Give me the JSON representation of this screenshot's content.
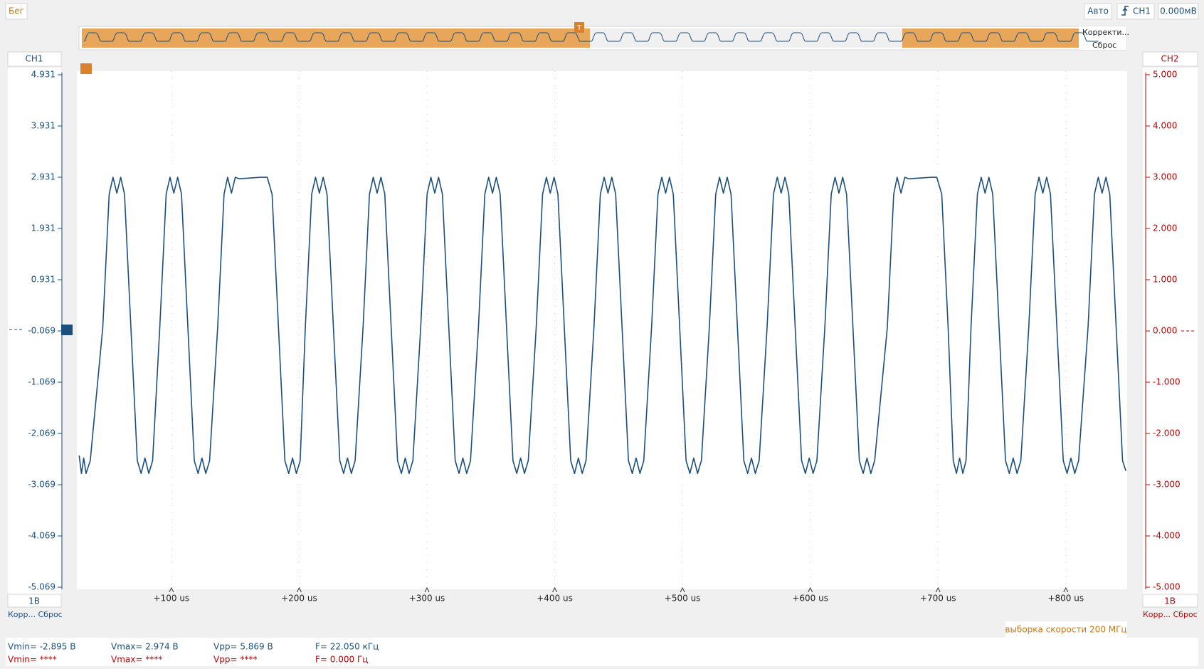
{
  "toolbar": {
    "run": "Бег",
    "mode": "Авто",
    "trigger_source": "CH1",
    "trigger_level": "0.000мВ"
  },
  "minimap": {
    "menu": "Корректи...",
    "reset": "Сброс"
  },
  "chart_data": {
    "type": "line",
    "xlim": [
      26,
      848
    ],
    "xticks": [
      {
        "value": 100,
        "label": "+100 us"
      },
      {
        "value": 200,
        "label": "+200 us"
      },
      {
        "value": 300,
        "label": "+300 us"
      },
      {
        "value": 400,
        "label": "+400 us"
      },
      {
        "value": 500,
        "label": "+500 us"
      },
      {
        "value": 600,
        "label": "+600 us"
      },
      {
        "value": 700,
        "label": "+700 us"
      },
      {
        "value": 800,
        "label": "+800 us"
      }
    ],
    "ylim": [
      -5.069,
      4.931
    ],
    "yticks": [
      4.931,
      3.931,
      2.931,
      1.931,
      0.931,
      -0.069,
      -1.069,
      -2.069,
      -3.069,
      -4.069,
      -5.069
    ],
    "y2lim": [
      -5,
      5
    ],
    "y2ticks": [
      {
        "value": 5,
        "label": "5.000"
      },
      {
        "value": 4,
        "label": "4.000"
      },
      {
        "value": 3,
        "label": "3.000"
      },
      {
        "value": 2,
        "label": "2.000"
      },
      {
        "value": 1,
        "label": "1.000"
      },
      {
        "value": 0,
        "label": "0.000"
      },
      {
        "value": -1,
        "label": "-1.000"
      },
      {
        "value": -2,
        "label": "-2.000"
      },
      {
        "value": -3,
        "label": "-3.000"
      },
      {
        "value": -4,
        "label": "-4.000"
      },
      {
        "value": -5,
        "label": "-5.000"
      }
    ],
    "y2_label": "CH2",
    "y2_color": "#c00000",
    "y_scale_label": "1В",
    "y2_scale_label": "1В",
    "grid": true,
    "x": [
      27.8,
      29.6,
      31.4,
      33.2,
      36.5,
      46.3,
      51.3,
      54.3,
      57.3,
      60.3,
      63.3,
      68.3,
      73.3,
      76.3,
      79.3,
      82.3,
      85.3,
      90.9,
      95.9,
      98.9,
      101.9,
      104.9,
      107.9,
      112.9,
      117.9,
      120.9,
      123.9,
      126.9,
      129.9,
      136.2,
      141.2,
      144,
      147,
      150,
      153,
      170,
      175,
      178.8,
      183.8,
      188.8,
      191.8,
      194.8,
      197.8,
      200.8,
      204.8,
      209.8,
      212.8,
      215.8,
      218.8,
      221.8,
      226.8,
      231.8,
      234.8,
      237.8,
      240.8,
      243.8,
      250,
      255,
      258,
      261,
      264,
      267,
      272,
      277,
      280,
      283,
      286,
      289,
      295.1,
      300.1,
      303.1,
      306.1,
      309.1,
      312.1,
      317.1,
      322.1,
      325.1,
      328.1,
      331.1,
      334.1,
      340.3,
      345.3,
      348.3,
      351.3,
      354.3,
      357.3,
      362.3,
      367.3,
      370.3,
      373.3,
      376.3,
      379.3,
      385.5,
      390.5,
      393.5,
      396.5,
      399.5,
      402.5,
      407.5,
      412.5,
      415.5,
      418.5,
      421.5,
      424.5,
      430.7,
      435.7,
      438.7,
      441.7,
      444.7,
      447.7,
      452.7,
      457.7,
      460.7,
      463.7,
      466.7,
      469.7,
      475.8,
      480.8,
      483.8,
      486.8,
      489.8,
      492.8,
      497.8,
      502.8,
      505.8,
      508.8,
      511.8,
      514.8,
      521,
      526,
      529,
      532,
      535,
      538,
      543,
      548,
      551,
      554,
      557,
      560,
      566.2,
      571.2,
      574.2,
      577.2,
      580.2,
      583.2,
      588.2,
      593.2,
      596.2,
      599.2,
      602.2,
      605.2,
      611.4,
      616.4,
      619.4,
      622.4,
      625.4,
      628.4,
      633.4,
      638.4,
      641.4,
      644.4,
      647.4,
      650.4,
      660.3,
      665.3,
      668,
      671,
      674,
      677,
      695,
      699,
      702.9,
      707.9,
      711.9,
      714.4,
      716.9,
      719.4,
      721.9,
      725.8,
      730.8,
      733.8,
      736.8,
      739.8,
      742.8,
      747.8,
      752.8,
      755.8,
      758.8,
      761.8,
      764.8,
      771,
      776,
      779,
      782,
      785,
      788,
      793,
      798,
      801,
      804,
      807,
      810,
      817.4,
      822.4,
      825.4,
      828.4,
      831.4,
      834.4,
      839.4,
      844.4,
      847
    ],
    "series": [
      {
        "name": "CH1",
        "color": "#1b4f7e",
        "values": [
          -2.5,
          -2.85,
          -2.55,
          -2.85,
          -2.6,
          0,
          2.6,
          2.93,
          2.62,
          2.93,
          2.6,
          0,
          -2.6,
          -2.85,
          -2.55,
          -2.85,
          -2.6,
          0,
          2.6,
          2.93,
          2.62,
          2.93,
          2.6,
          0,
          -2.6,
          -2.85,
          -2.55,
          -2.85,
          -2.6,
          0,
          2.6,
          2.93,
          2.62,
          2.93,
          2.9,
          2.93,
          2.93,
          2.6,
          0,
          -2.6,
          -2.85,
          -2.55,
          -2.85,
          -2.6,
          0,
          2.6,
          2.93,
          2.62,
          2.93,
          2.6,
          0,
          -2.6,
          -2.85,
          -2.55,
          -2.85,
          -2.6,
          0,
          2.6,
          2.93,
          2.62,
          2.93,
          2.6,
          0,
          -2.6,
          -2.85,
          -2.55,
          -2.85,
          -2.6,
          0,
          2.6,
          2.93,
          2.62,
          2.93,
          2.6,
          0,
          -2.6,
          -2.85,
          -2.55,
          -2.85,
          -2.6,
          0,
          2.6,
          2.93,
          2.62,
          2.93,
          2.6,
          0,
          -2.6,
          -2.85,
          -2.55,
          -2.85,
          -2.6,
          0,
          2.6,
          2.93,
          2.62,
          2.93,
          2.6,
          0,
          -2.6,
          -2.85,
          -2.55,
          -2.85,
          -2.6,
          0,
          2.6,
          2.93,
          2.62,
          2.93,
          2.6,
          0,
          -2.6,
          -2.85,
          -2.55,
          -2.85,
          -2.6,
          0,
          2.6,
          2.93,
          2.62,
          2.93,
          2.6,
          0,
          -2.6,
          -2.85,
          -2.55,
          -2.85,
          -2.6,
          0,
          2.6,
          2.93,
          2.62,
          2.93,
          2.6,
          0,
          -2.6,
          -2.85,
          -2.55,
          -2.85,
          -2.6,
          0,
          2.6,
          2.93,
          2.62,
          2.93,
          2.6,
          0,
          -2.6,
          -2.85,
          -2.55,
          -2.85,
          -2.6,
          0,
          2.6,
          2.93,
          2.62,
          2.93,
          2.6,
          0,
          -2.6,
          -2.85,
          -2.55,
          -2.85,
          -2.6,
          0,
          2.6,
          2.93,
          2.62,
          2.93,
          2.9,
          2.93,
          2.93,
          2.6,
          0,
          -2.6,
          -2.85,
          -2.55,
          -2.85,
          -2.6,
          0,
          2.6,
          2.93,
          2.62,
          2.93,
          2.6,
          0,
          -2.6,
          -2.85,
          -2.55,
          -2.85,
          -2.6,
          0,
          2.6,
          2.93,
          2.62,
          2.93,
          2.6,
          0,
          -2.6,
          -2.85,
          -2.55,
          -2.85,
          -2.6,
          0,
          2.6,
          2.93,
          2.62,
          2.93,
          2.6,
          0,
          -2.6,
          -2.8
        ]
      }
    ]
  },
  "left_panel": {
    "buttons": "Корр... Сброс"
  },
  "right_panel": {
    "buttons": "Корр... Сброс"
  },
  "sample_rate": "выборка скорости 200 МГц",
  "stats": {
    "rows": [
      [
        "Vmin= -2.895 В",
        "Vmax= 2.974 В",
        "Vpp= 5.869 В",
        "F= 22.050 кГц"
      ],
      [
        "Vmin= ****",
        "Vmax= ****",
        "Vpp= ****",
        "F= 0.000 Гц"
      ]
    ]
  }
}
